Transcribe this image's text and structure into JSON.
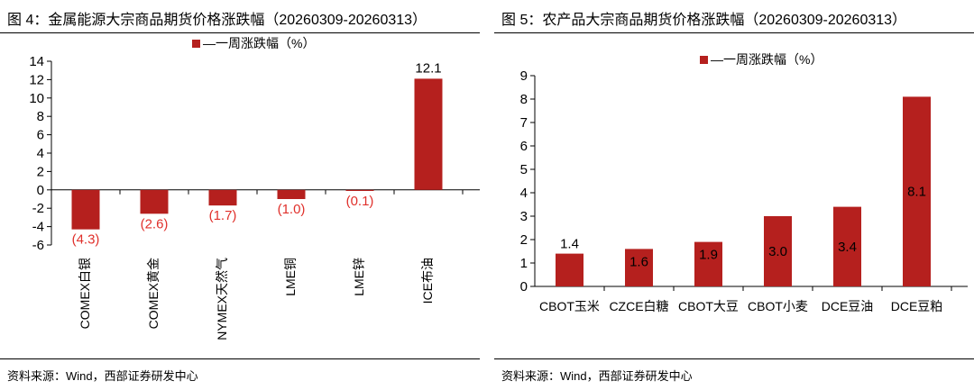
{
  "figures": [
    {
      "title": "图 4：金属能源大宗商品期货价格涨跌幅（20260309-20260313）",
      "source": "资料来源：Wind，西部证券研发中心"
    },
    {
      "title": "图 5：农产品大宗商品期货价格涨跌幅（20260309-20260313）",
      "source": "资料来源：Wind，西部证券研发中心"
    }
  ],
  "colors": {
    "bar": "#b5201e",
    "negative_label": "#e0302b",
    "axis": "#000000"
  },
  "chart_data": [
    {
      "type": "bar",
      "legend": "top-center",
      "grid": false,
      "ylim": [
        -6,
        14
      ],
      "yticks": [
        -6,
        -4,
        -2,
        0,
        2,
        4,
        6,
        8,
        10,
        12,
        14
      ],
      "categories": [
        "COMEX白银",
        "COMEX黄金",
        "NYMEX天然气",
        "LME铜",
        "LME锌",
        "ICE布油"
      ],
      "series": [
        {
          "name": "一周涨跌幅（%）",
          "values": [
            -4.3,
            -2.6,
            -1.7,
            -1.0,
            -0.1,
            12.1
          ],
          "labels": [
            "(4.3)",
            "(2.6)",
            "(1.7)",
            "(1.0)",
            "(0.1)",
            "12.1"
          ]
        }
      ]
    },
    {
      "type": "bar",
      "legend": "top-center",
      "grid": false,
      "ylim": [
        0,
        9
      ],
      "yticks": [
        0,
        1,
        2,
        3,
        4,
        5,
        6,
        7,
        8,
        9
      ],
      "categories": [
        "CBOT玉米",
        "CZCE白糖",
        "CBOT大豆",
        "CBOT小麦",
        "DCE豆油",
        "DCE豆粕"
      ],
      "series": [
        {
          "name": "一周涨跌幅（%）",
          "values": [
            1.4,
            1.6,
            1.9,
            3.0,
            3.4,
            8.1
          ],
          "labels": [
            "1.4",
            "1.6",
            "1.9",
            "3.0",
            "3.4",
            "8.1"
          ]
        }
      ]
    }
  ]
}
